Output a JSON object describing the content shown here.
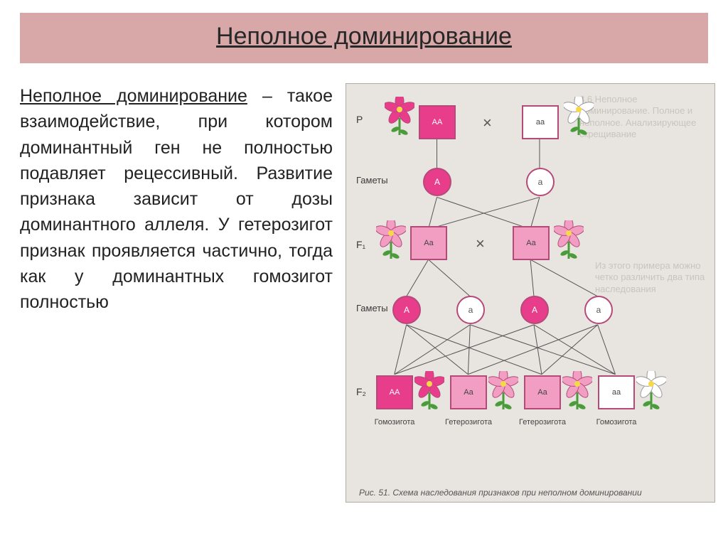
{
  "title": "Неполное доминирование",
  "paragraph": {
    "term": "Неполное доминирование",
    "rest": " – такое взаимодействие, при котором доминантный ген не полностью подавляет рецессивный. Развитие признака зависит от дозы доминантного аллеля. У гетерозигот признак проявляется частично, тогда как у доминантных гомозигот полностью"
  },
  "diagram": {
    "colors": {
      "dark_pink": "#e83d8a",
      "mid_pink": "#f29ec2",
      "white": "#ffffff",
      "border": "#b54a7a",
      "stem": "#4a9c3a",
      "line": "#555555"
    },
    "labels": {
      "gametes": "Гаметы",
      "P": "P",
      "F1": "F₁",
      "F2": "F₂",
      "homozygote": "Гомозигота",
      "heterozygote": "Гетерозигота"
    },
    "genotypes": {
      "AA": "АА",
      "Aa": "Аа",
      "aa": "аа",
      "A": "А",
      "a": "а"
    },
    "caption": "Рис. 51. Схема наследования признаков при неполном доминировании",
    "bg_text_top": "3.6 Неполное доминирование. Полное и неполное. Анализирующее скрещивание",
    "bg_text_mid": "Из этого примера можно четко различить два типа наследования"
  }
}
